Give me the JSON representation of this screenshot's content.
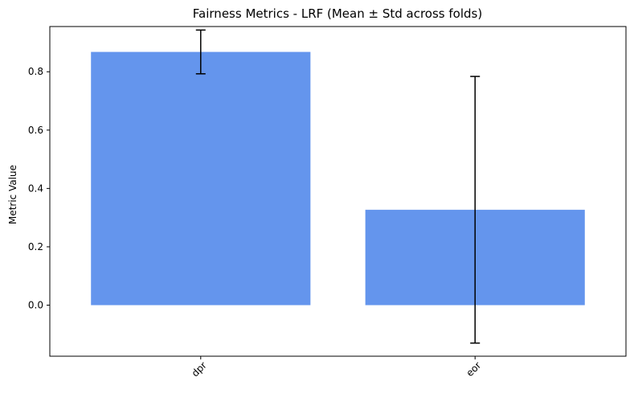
{
  "chart_data": {
    "type": "bar",
    "title": "Fairness Metrics - LRF (Mean ± Std across folds)",
    "xlabel": "",
    "ylabel": "Metric Value",
    "categories": [
      "dpr",
      "eor"
    ],
    "values": [
      0.868,
      0.327
    ],
    "errors": [
      0.075,
      0.457
    ],
    "ylim": [
      -0.175,
      0.955
    ],
    "yticks": [
      0.0,
      0.2,
      0.4,
      0.6,
      0.8
    ],
    "ytick_labels": [
      "0.0",
      "0.2",
      "0.4",
      "0.6",
      "0.8"
    ],
    "bar_color": "#6495ED",
    "error_color": "#000000",
    "grid": false,
    "legend": "none"
  }
}
